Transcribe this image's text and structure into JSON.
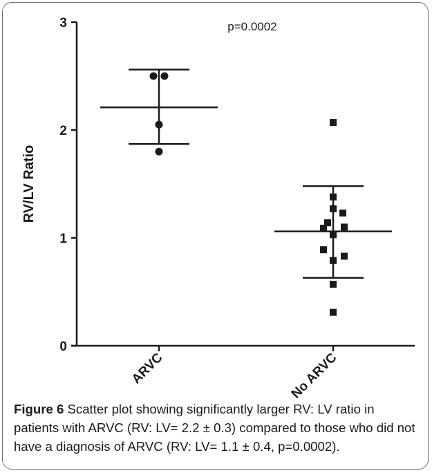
{
  "chart_data": {
    "type": "scatter",
    "title": "",
    "xlabel": "",
    "ylabel": "RV/LV Ratio",
    "annotation": "p=0.0002",
    "categories": [
      "ARVC",
      "No ARVC"
    ],
    "ylim": [
      0,
      3
    ],
    "yticks": [
      "0",
      "1",
      "2",
      "3"
    ],
    "grid": false,
    "series": [
      {
        "category": "ARVC",
        "marker": "circle",
        "values": [
          2.5,
          2.5,
          2.05,
          1.8
        ],
        "mean": 2.21,
        "sd_upper": 2.56,
        "sd_lower": 1.87
      },
      {
        "category": "No ARVC",
        "marker": "square",
        "values": [
          2.07,
          1.38,
          1.27,
          1.23,
          1.14,
          1.1,
          1.09,
          1.03,
          0.89,
          0.83,
          0.79,
          0.57,
          0.31
        ],
        "mean": 1.06,
        "sd_upper": 1.48,
        "sd_lower": 0.63
      }
    ]
  },
  "caption": {
    "label": "Figure 6",
    "text": " Scatter plot showing significantly larger RV: LV ratio in patients with ARVC (RV: LV= 2.2 ± 0.3) compared to those who did not have a diagnosis of ARVC (RV: LV= 1.1 ± 0.4, p=0.0002)."
  }
}
